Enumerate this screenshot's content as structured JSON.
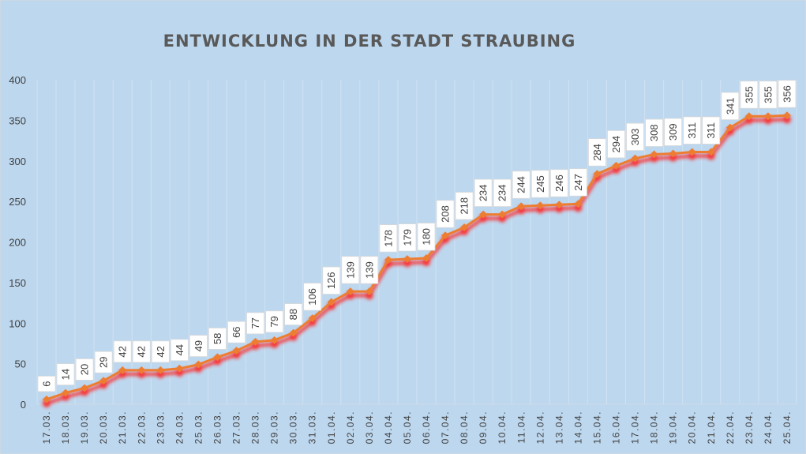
{
  "chart_data": {
    "type": "line",
    "title": "ENTWICKLUNG IN DER STADT STRAUBING",
    "xlabel": "",
    "ylabel": "",
    "ylim": [
      0,
      400
    ],
    "yticks": [
      "0",
      "50",
      "100",
      "150",
      "200",
      "250",
      "300",
      "350",
      "400"
    ],
    "grid": "vertical",
    "legend": "none",
    "categories": [
      "17.03.",
      "18.03.",
      "19.03.",
      "20.03.",
      "21.03.",
      "22.03.",
      "23.03.",
      "24.03.",
      "25.03.",
      "26.03.",
      "27.03.",
      "28.03.",
      "29.03.",
      "30.03.",
      "31.03.",
      "01.04.",
      "02.04.",
      "03.04.",
      "04.04.",
      "05.04.",
      "06.04.",
      "07.04.",
      "08.04.",
      "09.04.",
      "10.04.",
      "11.04.",
      "12.04.",
      "13.04.",
      "14.04.",
      "15.04.",
      "16.04.",
      "17.04.",
      "18.04.",
      "19.04.",
      "20.04.",
      "21.04.",
      "22.04.",
      "23.04.",
      "24.04.",
      "25.04."
    ],
    "series": [
      {
        "name": "Straubing",
        "color": "#ed7d31",
        "shadow_color": "#ff2020",
        "values": [
          6,
          14,
          20,
          29,
          42,
          42,
          42,
          44,
          49,
          58,
          66,
          77,
          79,
          88,
          106,
          126,
          139,
          139,
          178,
          179,
          180,
          208,
          218,
          234,
          234,
          244,
          245,
          246,
          247,
          284,
          294,
          303,
          308,
          309,
          311,
          311,
          341,
          355,
          355,
          356
        ]
      }
    ],
    "colors": {
      "background": "#bdd7ee",
      "gridline": "#d0e2f2",
      "label_box": "#ffffff"
    }
  }
}
